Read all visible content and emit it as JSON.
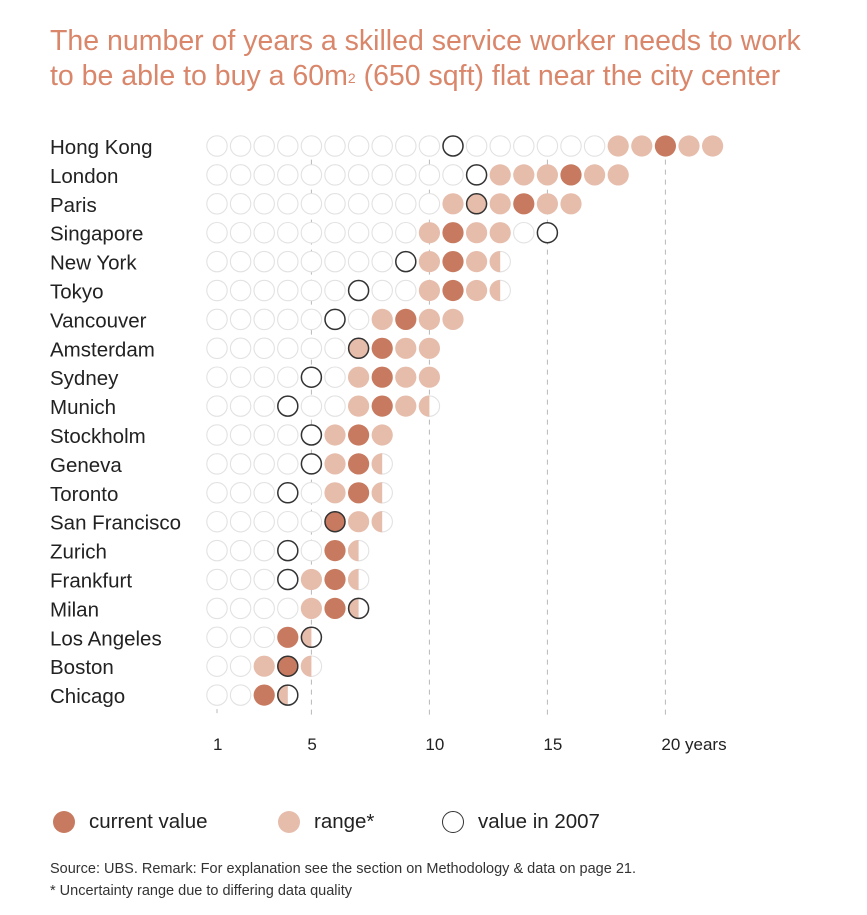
{
  "title_line1": "The number of years a skilled service worker needs to work",
  "title_line2_pre": "to be able to buy a 60m",
  "title_sup": "2",
  "title_line2_post": " (650 sqft) flat near the city center",
  "colors": {
    "current": "#c77a5f",
    "range": "#e6bcab",
    "outline": "#e2e2e2",
    "value2007": "#333333",
    "title": "#d9866a"
  },
  "chart_data": {
    "type": "dot-range",
    "title": "The number of years a skilled service worker needs to work to be able to buy a 60m2 (650 sqft) flat near the city center",
    "x_ticks": [
      {
        "value": 1,
        "label": "1"
      },
      {
        "value": 5,
        "label": "5"
      },
      {
        "value": 10,
        "label": "10"
      },
      {
        "value": 15,
        "label": "15"
      },
      {
        "value": 20,
        "label": "20 years"
      }
    ],
    "xlim": [
      1,
      22
    ],
    "series": [
      {
        "city": "Hong Kong",
        "current": 20,
        "range": [
          17.5,
          22
        ],
        "value_2007": 11
      },
      {
        "city": "London",
        "current": 16,
        "range": [
          12.5,
          18
        ],
        "value_2007": 12
      },
      {
        "city": "Paris",
        "current": 14,
        "range": [
          11,
          16
        ],
        "value_2007": 12
      },
      {
        "city": "Singapore",
        "current": 11,
        "range": [
          10,
          13
        ],
        "value_2007": 15
      },
      {
        "city": "New York",
        "current": 11,
        "range": [
          10,
          12.5
        ],
        "value_2007": 9
      },
      {
        "city": "Tokyo",
        "current": 11,
        "range": [
          9.5,
          12.5
        ],
        "value_2007": 7
      },
      {
        "city": "Vancouver",
        "current": 9,
        "range": [
          8,
          11
        ],
        "value_2007": 6
      },
      {
        "city": "Amsterdam",
        "current": 8,
        "range": [
          7,
          10
        ],
        "value_2007": 7
      },
      {
        "city": "Sydney",
        "current": 8,
        "range": [
          7,
          10
        ],
        "value_2007": 5
      },
      {
        "city": "Munich",
        "current": 8,
        "range": [
          7,
          9.5
        ],
        "value_2007": 4
      },
      {
        "city": "Stockholm",
        "current": 7,
        "range": [
          6,
          8
        ],
        "value_2007": 5
      },
      {
        "city": "Geneva",
        "current": 7,
        "range": [
          6,
          7.5
        ],
        "value_2007": 5
      },
      {
        "city": "Toronto",
        "current": 7,
        "range": [
          6,
          7.5
        ],
        "value_2007": 4
      },
      {
        "city": "San Francisco",
        "current": 6,
        "range": [
          5.5,
          7.5
        ],
        "value_2007": 6
      },
      {
        "city": "Zurich",
        "current": 6,
        "range": [
          5.5,
          6.5
        ],
        "value_2007": 4
      },
      {
        "city": "Frankfurt",
        "current": 6,
        "range": [
          5,
          6.5
        ],
        "value_2007": 4
      },
      {
        "city": "Milan",
        "current": 6,
        "range": [
          5,
          6.5
        ],
        "value_2007": 7
      },
      {
        "city": "Los Angeles",
        "current": 4,
        "range": [
          3.5,
          4.5
        ],
        "value_2007": 5
      },
      {
        "city": "Boston",
        "current": 4,
        "range": [
          3,
          4.5
        ],
        "value_2007": 4
      },
      {
        "city": "Chicago",
        "current": 3,
        "range": [
          2.5,
          3.5
        ],
        "value_2007": 4
      }
    ]
  },
  "legend": {
    "current": "current value",
    "range": "range*",
    "value_2007": "value in 2007"
  },
  "source_note": "Source: UBS. Remark: For explanation see the section on Methodology & data on page 21.",
  "footnote": "* Uncertainty range due to differing data quality"
}
